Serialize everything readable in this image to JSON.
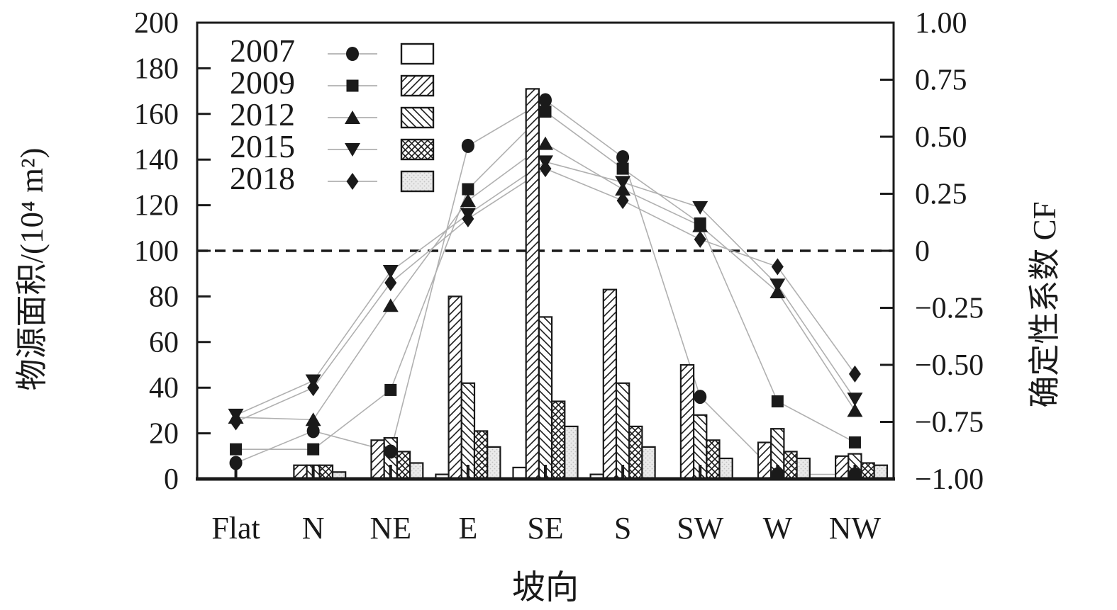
{
  "figure": {
    "description": "Dual-axis chart: source-material area bars (left axis) and certainty factor CF marker-lines (right axis) by slope aspect, for years 2007-2018"
  },
  "colors": {
    "ink": "#1a1a1a",
    "connector_line": "#b0b0b0",
    "gray_fill": "#eaeaea",
    "dot_fill": "#c0c0c0",
    "background": "#ffffff"
  },
  "chart_data": {
    "type": "bar",
    "subtype": "grouped bars (left axis) + scatter-line series (right axis)",
    "categories": [
      "Flat",
      "N",
      "NE",
      "E",
      "SE",
      "S",
      "SW",
      "W",
      "NW"
    ],
    "title": "",
    "xlabel": "坡向",
    "left_axis": {
      "label": "物源面积/(10⁴ m²)",
      "min": 0,
      "max": 200,
      "tick_step": 20,
      "tick_labels": [
        "0",
        "20",
        "40",
        "60",
        "80",
        "100",
        "120",
        "140",
        "160",
        "180",
        "200"
      ]
    },
    "right_axis": {
      "label": "确定性系数 CF",
      "min": -1.0,
      "max": 1.0,
      "tick_step": 0.25,
      "tick_labels": [
        "−1.00",
        "−0.75",
        "−0.50",
        "−0.25",
        "0",
        "0.25",
        "0.50",
        "0.75",
        "1.00"
      ]
    },
    "reference_line": {
      "cf": 0,
      "style": "dashed",
      "color": "#1a1a1a"
    },
    "grid": false,
    "legend_position": "top-left-inside",
    "series": [
      {
        "year": "2007",
        "marker": "circle",
        "pattern": "white",
        "bars_area": [
          0,
          0,
          0,
          2,
          5,
          2,
          0,
          0,
          0
        ],
        "cf": [
          -0.93,
          -0.79,
          -0.88,
          0.46,
          0.66,
          0.41,
          -0.64,
          -0.98,
          -0.98
        ]
      },
      {
        "year": "2009",
        "marker": "square",
        "pattern": "hatch-fwd",
        "bars_area": [
          0,
          6,
          17,
          80,
          171,
          83,
          50,
          16,
          10
        ],
        "cf": [
          -0.87,
          -0.87,
          -0.61,
          0.27,
          0.61,
          0.36,
          0.12,
          -0.66,
          -0.84
        ]
      },
      {
        "year": "2012",
        "marker": "triangle-up",
        "pattern": "hatch-back",
        "bars_area": [
          0,
          6,
          18,
          42,
          71,
          42,
          28,
          22,
          11
        ],
        "cf": [
          -0.73,
          -0.74,
          -0.24,
          0.22,
          0.47,
          0.27,
          0.11,
          -0.18,
          -0.7
        ]
      },
      {
        "year": "2015",
        "marker": "triangle-down",
        "pattern": "crosshatch",
        "bars_area": [
          0,
          6,
          12,
          21,
          34,
          23,
          17,
          12,
          7
        ],
        "cf": [
          -0.72,
          -0.57,
          -0.09,
          0.16,
          0.39,
          0.3,
          0.19,
          -0.15,
          -0.65
        ]
      },
      {
        "year": "2018",
        "marker": "diamond",
        "pattern": "dots",
        "bars_area": [
          0,
          3,
          7,
          14,
          23,
          14,
          9,
          9,
          6
        ],
        "cf": [
          -0.75,
          -0.6,
          -0.14,
          0.14,
          0.36,
          0.22,
          0.05,
          -0.07,
          -0.54
        ]
      }
    ]
  },
  "legend": {
    "items": [
      {
        "label": "2007"
      },
      {
        "label": "2009"
      },
      {
        "label": "2012"
      },
      {
        "label": "2015"
      },
      {
        "label": "2018"
      }
    ]
  }
}
